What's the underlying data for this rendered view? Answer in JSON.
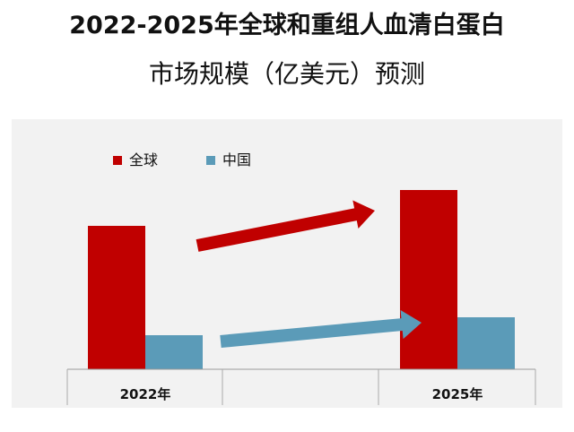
{
  "title_line1": "2022-2025年全球和重组人血清白蛋白",
  "title_line2": "市场规模（亿美元）预测",
  "chart_data": {
    "type": "bar",
    "categories": [
      "2022年",
      "2025年"
    ],
    "series": [
      {
        "name": "全球",
        "color": "#c00000",
        "values": [
          160,
          200
        ]
      },
      {
        "name": "中国",
        "color": "#5b9bb8",
        "values": [
          38,
          58
        ]
      }
    ],
    "ylim": [
      0,
      210
    ],
    "grid": false,
    "legend": "top-left",
    "arrows": [
      {
        "series": "全球",
        "color": "#c00000"
      },
      {
        "series": "中国",
        "color": "#5b9bb8"
      }
    ]
  }
}
